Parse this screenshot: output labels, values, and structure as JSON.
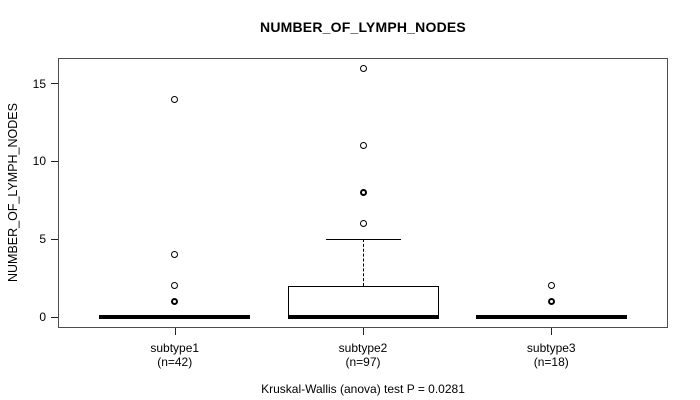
{
  "chart_data": {
    "type": "boxplot",
    "title": "NUMBER_OF_LYMPH_NODES",
    "ylabel": "NUMBER_OF_LYMPH_NODES",
    "xlabel": "",
    "caption": "Kruskal-Wallis (anova) test P = 0.0281",
    "grid": false,
    "legend_position": "none",
    "ylim": [
      -0.7,
      16.65
    ],
    "yticks": [
      0,
      5,
      10,
      15
    ],
    "groups": [
      {
        "label": "subtype1",
        "n_label": "(n=42)",
        "n": 42,
        "stats": {
          "whisker_low": 0,
          "q1": 0,
          "median": 0,
          "q3": 0,
          "whisker_high": 0
        },
        "outliers": [
          {
            "value": 1,
            "emphasized": true
          },
          {
            "value": 2,
            "emphasized": false
          },
          {
            "value": 4,
            "emphasized": false
          },
          {
            "value": 14,
            "emphasized": false
          }
        ]
      },
      {
        "label": "subtype2",
        "n_label": "(n=97)",
        "n": 97,
        "stats": {
          "whisker_low": 0,
          "q1": 0,
          "median": 0,
          "q3": 2,
          "whisker_high": 5
        },
        "outliers": [
          {
            "value": 6,
            "emphasized": false
          },
          {
            "value": 8,
            "emphasized": true
          },
          {
            "value": 11,
            "emphasized": false
          },
          {
            "value": 16,
            "emphasized": false
          }
        ]
      },
      {
        "label": "subtype3",
        "n_label": "(n=18)",
        "n": 18,
        "stats": {
          "whisker_low": 0,
          "q1": 0,
          "median": 0,
          "q3": 0,
          "whisker_high": 0
        },
        "outliers": [
          {
            "value": 1,
            "emphasized": true
          },
          {
            "value": 2,
            "emphasized": false
          }
        ]
      }
    ],
    "colors": {
      "background": "#ffffff",
      "box_fill": "#ffffff",
      "line": "#000000",
      "frame": "#4d4d4d",
      "text": "#000000"
    }
  }
}
